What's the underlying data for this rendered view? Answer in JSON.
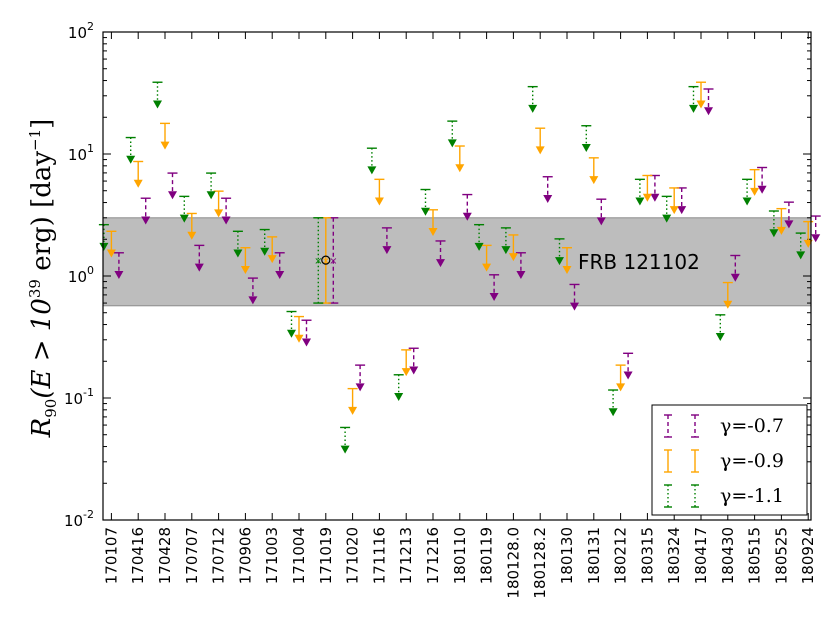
{
  "chart_data": {
    "type": "scatter",
    "title": "",
    "xlabel": "",
    "ylabel": "R_90(E > 10^39 erg) [day^-1]",
    "ylabel_parts": {
      "base": "R",
      "sub": "90",
      "mid": "(E > 10",
      "sup": "39",
      "end": " erg)  [day",
      "sup2": "−1",
      "close": "]"
    },
    "yscale": "log",
    "ylim": [
      0.01,
      100
    ],
    "y_tick_labels": [
      "10",
      "10",
      "10",
      "10",
      "10"
    ],
    "y_tick_exponents": [
      "-2",
      "-1",
      "0",
      "1",
      "2"
    ],
    "categories": [
      "170107",
      "170416",
      "170428",
      "170707",
      "170712",
      "170906",
      "171003",
      "171004",
      "171019",
      "171020",
      "171116",
      "171213",
      "171216",
      "180110",
      "180119",
      "180128.0",
      "180128.2",
      "180130",
      "180131",
      "180212",
      "180315",
      "180324",
      "180417",
      "180430",
      "180515",
      "180525",
      "180924"
    ],
    "grid": false,
    "legend_position": "lower-right",
    "band": {
      "label": "FRB 121102",
      "low": 0.57,
      "high": 3.0,
      "color": "#bdbdbd"
    },
    "frb_point": {
      "category": "171019",
      "value": 1.35,
      "lower": 0.6,
      "upper": 3.0
    },
    "series": [
      {
        "name": "γ=-0.7",
        "color": "#800080",
        "style": "dashed",
        "offset": 0.28,
        "values": [
          1.0,
          2.8,
          4.5,
          1.15,
          2.8,
          0.62,
          1.0,
          0.28,
          0.55,
          0.12,
          1.6,
          0.165,
          1.25,
          3.0,
          0.66,
          1.0,
          4.2,
          0.55,
          2.75,
          0.15,
          4.3,
          3.4,
          22.0,
          0.95,
          5.0,
          2.6,
          2.0
        ]
      },
      {
        "name": "γ=-0.9",
        "color": "#ffa500",
        "style": "solid",
        "offset": 0.0,
        "values": [
          1.5,
          5.6,
          11.5,
          2.1,
          3.2,
          1.1,
          1.35,
          0.3,
          0.6,
          0.077,
          4.0,
          0.16,
          2.25,
          7.5,
          1.15,
          1.4,
          10.5,
          1.1,
          6.0,
          0.12,
          4.3,
          3.4,
          25.0,
          0.57,
          4.8,
          2.3,
          1.8
        ]
      },
      {
        "name": "γ=-1.1",
        "color": "#008000",
        "style": "dotted",
        "offset": -0.28,
        "values": [
          1.7,
          8.8,
          25.0,
          2.9,
          4.5,
          1.5,
          1.55,
          0.33,
          0.6,
          0.037,
          7.2,
          0.1,
          3.3,
          12.0,
          1.7,
          1.6,
          23.0,
          1.3,
          11.0,
          0.075,
          4.0,
          2.9,
          23.0,
          0.31,
          4.0,
          2.2,
          1.45
        ]
      }
    ]
  }
}
